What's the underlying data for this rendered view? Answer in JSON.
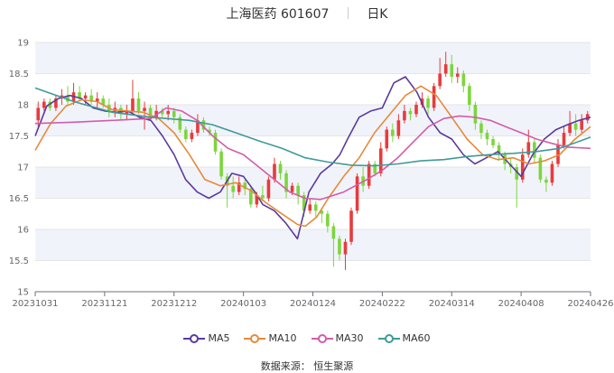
{
  "title": {
    "name": "上海医药",
    "code": "601607",
    "period": "日K"
  },
  "source_label": "数据来源：",
  "source_value": "恒生聚源",
  "chart_data": {
    "type": "candlestick",
    "ylim": [
      15,
      19
    ],
    "yticks": [
      "15",
      "15.5",
      "16",
      "16.5",
      "17",
      "17.5",
      "18",
      "18.5",
      "19"
    ],
    "xticks": [
      "20231031",
      "20231121",
      "20231212",
      "20240103",
      "20240124",
      "20240222",
      "20240314",
      "20240408",
      "20240426"
    ],
    "colors": {
      "up": "#e83b3b",
      "down": "#7cd63c",
      "band": "#f1f3fb",
      "grid": "#e6e6e6"
    },
    "series": [
      {
        "name": "MA5",
        "color": "#5b3a9e",
        "x": [
          0,
          3,
          6,
          9,
          12,
          15,
          18,
          21,
          24,
          27,
          30,
          33,
          36,
          39,
          42,
          45,
          48,
          51,
          54,
          57,
          59,
          62,
          65,
          68,
          71,
          74,
          77,
          79,
          81,
          84,
          87,
          90,
          93,
          96,
          99,
          102,
          105,
          108,
          111,
          114,
          117,
          120,
          123,
          126,
          129,
          132,
          135,
          138,
          141,
          144
        ],
        "y": [
          17.5,
          17.98,
          18.1,
          18.15,
          18.1,
          17.95,
          17.9,
          17.88,
          17.9,
          17.8,
          17.75,
          17.5,
          17.2,
          16.8,
          16.6,
          16.5,
          16.6,
          16.9,
          16.85,
          16.6,
          16.4,
          16.3,
          16.1,
          15.85,
          16.6,
          16.9,
          17.05,
          17.2,
          17.45,
          17.8,
          17.9,
          17.95,
          18.35,
          18.45,
          18.2,
          17.8,
          17.55,
          17.45,
          17.2,
          17.05,
          17.15,
          17.25,
          17.05,
          16.85,
          17.2,
          17.45,
          17.6,
          17.68,
          17.75,
          17.8
        ]
      },
      {
        "name": "MA10",
        "color": "#e58a3a",
        "x": [
          0,
          4,
          8,
          12,
          16,
          20,
          24,
          28,
          32,
          36,
          40,
          44,
          48,
          52,
          56,
          60,
          64,
          68,
          70,
          73,
          76,
          80,
          84,
          88,
          92,
          96,
          100,
          104,
          108,
          112,
          116,
          120,
          124,
          128,
          132,
          136,
          140,
          144
        ],
        "y": [
          17.27,
          17.7,
          17.98,
          18.08,
          18.05,
          17.92,
          17.9,
          17.88,
          17.78,
          17.55,
          17.2,
          16.8,
          16.7,
          16.75,
          16.62,
          16.42,
          16.25,
          16.08,
          16.05,
          16.2,
          16.5,
          16.85,
          17.15,
          17.55,
          17.85,
          18.15,
          18.3,
          18.15,
          17.8,
          17.45,
          17.2,
          17.12,
          17.15,
          17.05,
          17.1,
          17.2,
          17.45,
          17.65
        ]
      },
      {
        "name": "MA30",
        "color": "#d25caa",
        "x": [
          0,
          10,
          20,
          30,
          34,
          38,
          42,
          46,
          50,
          54,
          58,
          62,
          66,
          70,
          74,
          80,
          86,
          90,
          94,
          98,
          102,
          106,
          110,
          114,
          118,
          122,
          126,
          130,
          134,
          138,
          144
        ],
        "y": [
          17.7,
          17.72,
          17.75,
          17.78,
          17.95,
          17.9,
          17.75,
          17.5,
          17.3,
          17.2,
          17.0,
          16.8,
          16.6,
          16.5,
          16.48,
          16.6,
          16.8,
          16.95,
          17.15,
          17.4,
          17.65,
          17.78,
          17.82,
          17.8,
          17.75,
          17.65,
          17.55,
          17.45,
          17.38,
          17.32,
          17.3
        ]
      },
      {
        "name": "MA60",
        "color": "#3f9a9a",
        "x": [
          0,
          10,
          20,
          30,
          40,
          46,
          52,
          58,
          64,
          70,
          76,
          82,
          88,
          94,
          100,
          106,
          112,
          118,
          124,
          130,
          136,
          144
        ],
        "y": [
          18.27,
          18.05,
          17.88,
          17.8,
          17.75,
          17.68,
          17.55,
          17.42,
          17.3,
          17.15,
          17.08,
          17.03,
          17.02,
          17.05,
          17.1,
          17.12,
          17.17,
          17.2,
          17.22,
          17.25,
          17.3,
          17.48
        ]
      }
    ],
    "candles": [
      [
        17.75,
        17.95,
        17.65,
        18.05
      ],
      [
        17.95,
        18.05,
        17.9,
        18.1
      ],
      [
        18.05,
        17.95,
        17.9,
        18.1
      ],
      [
        17.95,
        18.1,
        17.9,
        18.15
      ],
      [
        18.1,
        18.15,
        18.0,
        18.25
      ],
      [
        18.15,
        18.05,
        18.0,
        18.3
      ],
      [
        18.05,
        18.2,
        18.0,
        18.35
      ],
      [
        18.2,
        18.1,
        18.05,
        18.3
      ],
      [
        18.1,
        18.15,
        18.0,
        18.2
      ],
      [
        18.15,
        18.05,
        18.0,
        18.25
      ],
      [
        18.05,
        18.1,
        17.95,
        18.2
      ],
      [
        18.1,
        18.0,
        17.95,
        18.15
      ],
      [
        18.0,
        17.9,
        17.8,
        18.1
      ],
      [
        17.9,
        17.95,
        17.8,
        18.05
      ],
      [
        17.95,
        17.85,
        17.75,
        18.0
      ],
      [
        17.85,
        17.9,
        17.75,
        18.0
      ],
      [
        17.9,
        18.1,
        17.85,
        18.4
      ],
      [
        18.1,
        17.9,
        17.85,
        18.2
      ],
      [
        17.9,
        17.95,
        17.6,
        18.05
      ],
      [
        17.95,
        17.8,
        17.75,
        18.0
      ],
      [
        17.8,
        17.9,
        17.75,
        18.0
      ],
      [
        17.9,
        17.85,
        17.8,
        17.95
      ],
      [
        17.85,
        17.9,
        17.75,
        18.0
      ],
      [
        17.9,
        17.8,
        17.7,
        17.95
      ],
      [
        17.8,
        17.6,
        17.55,
        17.85
      ],
      [
        17.6,
        17.45,
        17.4,
        17.65
      ],
      [
        17.45,
        17.55,
        17.4,
        17.6
      ],
      [
        17.55,
        17.75,
        17.5,
        17.85
      ],
      [
        17.75,
        17.6,
        17.55,
        17.8
      ],
      [
        17.6,
        17.55,
        17.5,
        17.65
      ],
      [
        17.55,
        17.25,
        17.2,
        17.6
      ],
      [
        17.25,
        16.85,
        16.8,
        17.3
      ],
      [
        16.85,
        16.7,
        16.35,
        16.9
      ],
      [
        16.7,
        16.6,
        16.5,
        16.85
      ],
      [
        16.6,
        16.75,
        16.55,
        16.85
      ],
      [
        16.75,
        16.65,
        16.55,
        16.8
      ],
      [
        16.65,
        16.4,
        16.35,
        16.7
      ],
      [
        16.4,
        16.55,
        16.35,
        16.6
      ],
      [
        16.55,
        16.5,
        16.45,
        16.7
      ],
      [
        16.5,
        16.8,
        16.45,
        16.85
      ],
      [
        16.8,
        17.05,
        16.75,
        17.15
      ],
      [
        17.05,
        16.9,
        16.8,
        17.1
      ],
      [
        16.9,
        16.6,
        16.5,
        16.95
      ],
      [
        16.6,
        16.7,
        16.55,
        16.75
      ],
      [
        16.7,
        16.55,
        16.4,
        16.75
      ],
      [
        16.55,
        16.3,
        16.2,
        16.6
      ],
      [
        16.3,
        16.4,
        16.25,
        16.5
      ],
      [
        16.4,
        16.3,
        16.2,
        16.45
      ],
      [
        16.3,
        16.25,
        16.1,
        16.35
      ],
      [
        16.25,
        16.05,
        15.95,
        16.3
      ],
      [
        16.05,
        15.85,
        15.4,
        16.1
      ],
      [
        15.85,
        15.6,
        15.5,
        15.9
      ],
      [
        15.6,
        15.8,
        15.35,
        15.85
      ],
      [
        15.8,
        16.3,
        15.75,
        16.35
      ],
      [
        16.3,
        16.85,
        16.25,
        16.9
      ],
      [
        16.85,
        16.7,
        16.6,
        17.0
      ],
      [
        16.7,
        17.05,
        16.65,
        17.1
      ],
      [
        17.05,
        16.9,
        16.85,
        17.1
      ],
      [
        16.9,
        17.3,
        16.85,
        17.4
      ],
      [
        17.3,
        17.6,
        17.25,
        17.65
      ],
      [
        17.6,
        17.5,
        17.4,
        17.7
      ],
      [
        17.5,
        17.75,
        17.45,
        17.85
      ],
      [
        17.75,
        17.9,
        17.7,
        18.0
      ],
      [
        17.9,
        17.85,
        17.75,
        17.95
      ],
      [
        17.85,
        18.0,
        17.8,
        18.05
      ],
      [
        18.0,
        18.1,
        17.95,
        18.2
      ],
      [
        18.1,
        17.95,
        17.85,
        18.15
      ],
      [
        17.95,
        18.3,
        17.9,
        18.35
      ],
      [
        18.3,
        18.5,
        18.25,
        18.75
      ],
      [
        18.5,
        18.65,
        18.45,
        18.85
      ],
      [
        18.65,
        18.45,
        18.35,
        18.8
      ],
      [
        18.45,
        18.5,
        18.35,
        18.6
      ],
      [
        18.5,
        18.3,
        18.2,
        18.55
      ],
      [
        18.3,
        18.0,
        17.9,
        18.35
      ],
      [
        18.0,
        17.7,
        17.6,
        18.05
      ],
      [
        17.7,
        17.55,
        17.45,
        17.75
      ],
      [
        17.55,
        17.45,
        17.35,
        17.6
      ],
      [
        17.45,
        17.35,
        17.3,
        17.5
      ],
      [
        17.35,
        17.2,
        17.1,
        17.4
      ],
      [
        17.2,
        17.05,
        16.95,
        17.25
      ],
      [
        17.05,
        17.0,
        16.9,
        17.15
      ],
      [
        17.0,
        16.8,
        16.35,
        17.05
      ],
      [
        16.8,
        17.2,
        16.75,
        17.3
      ],
      [
        17.2,
        17.4,
        17.15,
        17.6
      ],
      [
        17.4,
        17.15,
        17.05,
        17.45
      ],
      [
        17.15,
        16.8,
        16.75,
        17.2
      ],
      [
        16.8,
        16.75,
        16.6,
        16.85
      ],
      [
        16.75,
        17.05,
        16.7,
        17.1
      ],
      [
        17.05,
        17.35,
        17.0,
        17.45
      ],
      [
        17.35,
        17.55,
        17.3,
        17.65
      ],
      [
        17.55,
        17.7,
        17.5,
        17.9
      ],
      [
        17.7,
        17.6,
        17.5,
        17.85
      ],
      [
        17.6,
        17.75,
        17.55,
        17.85
      ],
      [
        17.75,
        17.85,
        17.7,
        17.9
      ]
    ]
  },
  "legend": {
    "items": [
      "MA5",
      "MA10",
      "MA30",
      "MA60"
    ]
  }
}
